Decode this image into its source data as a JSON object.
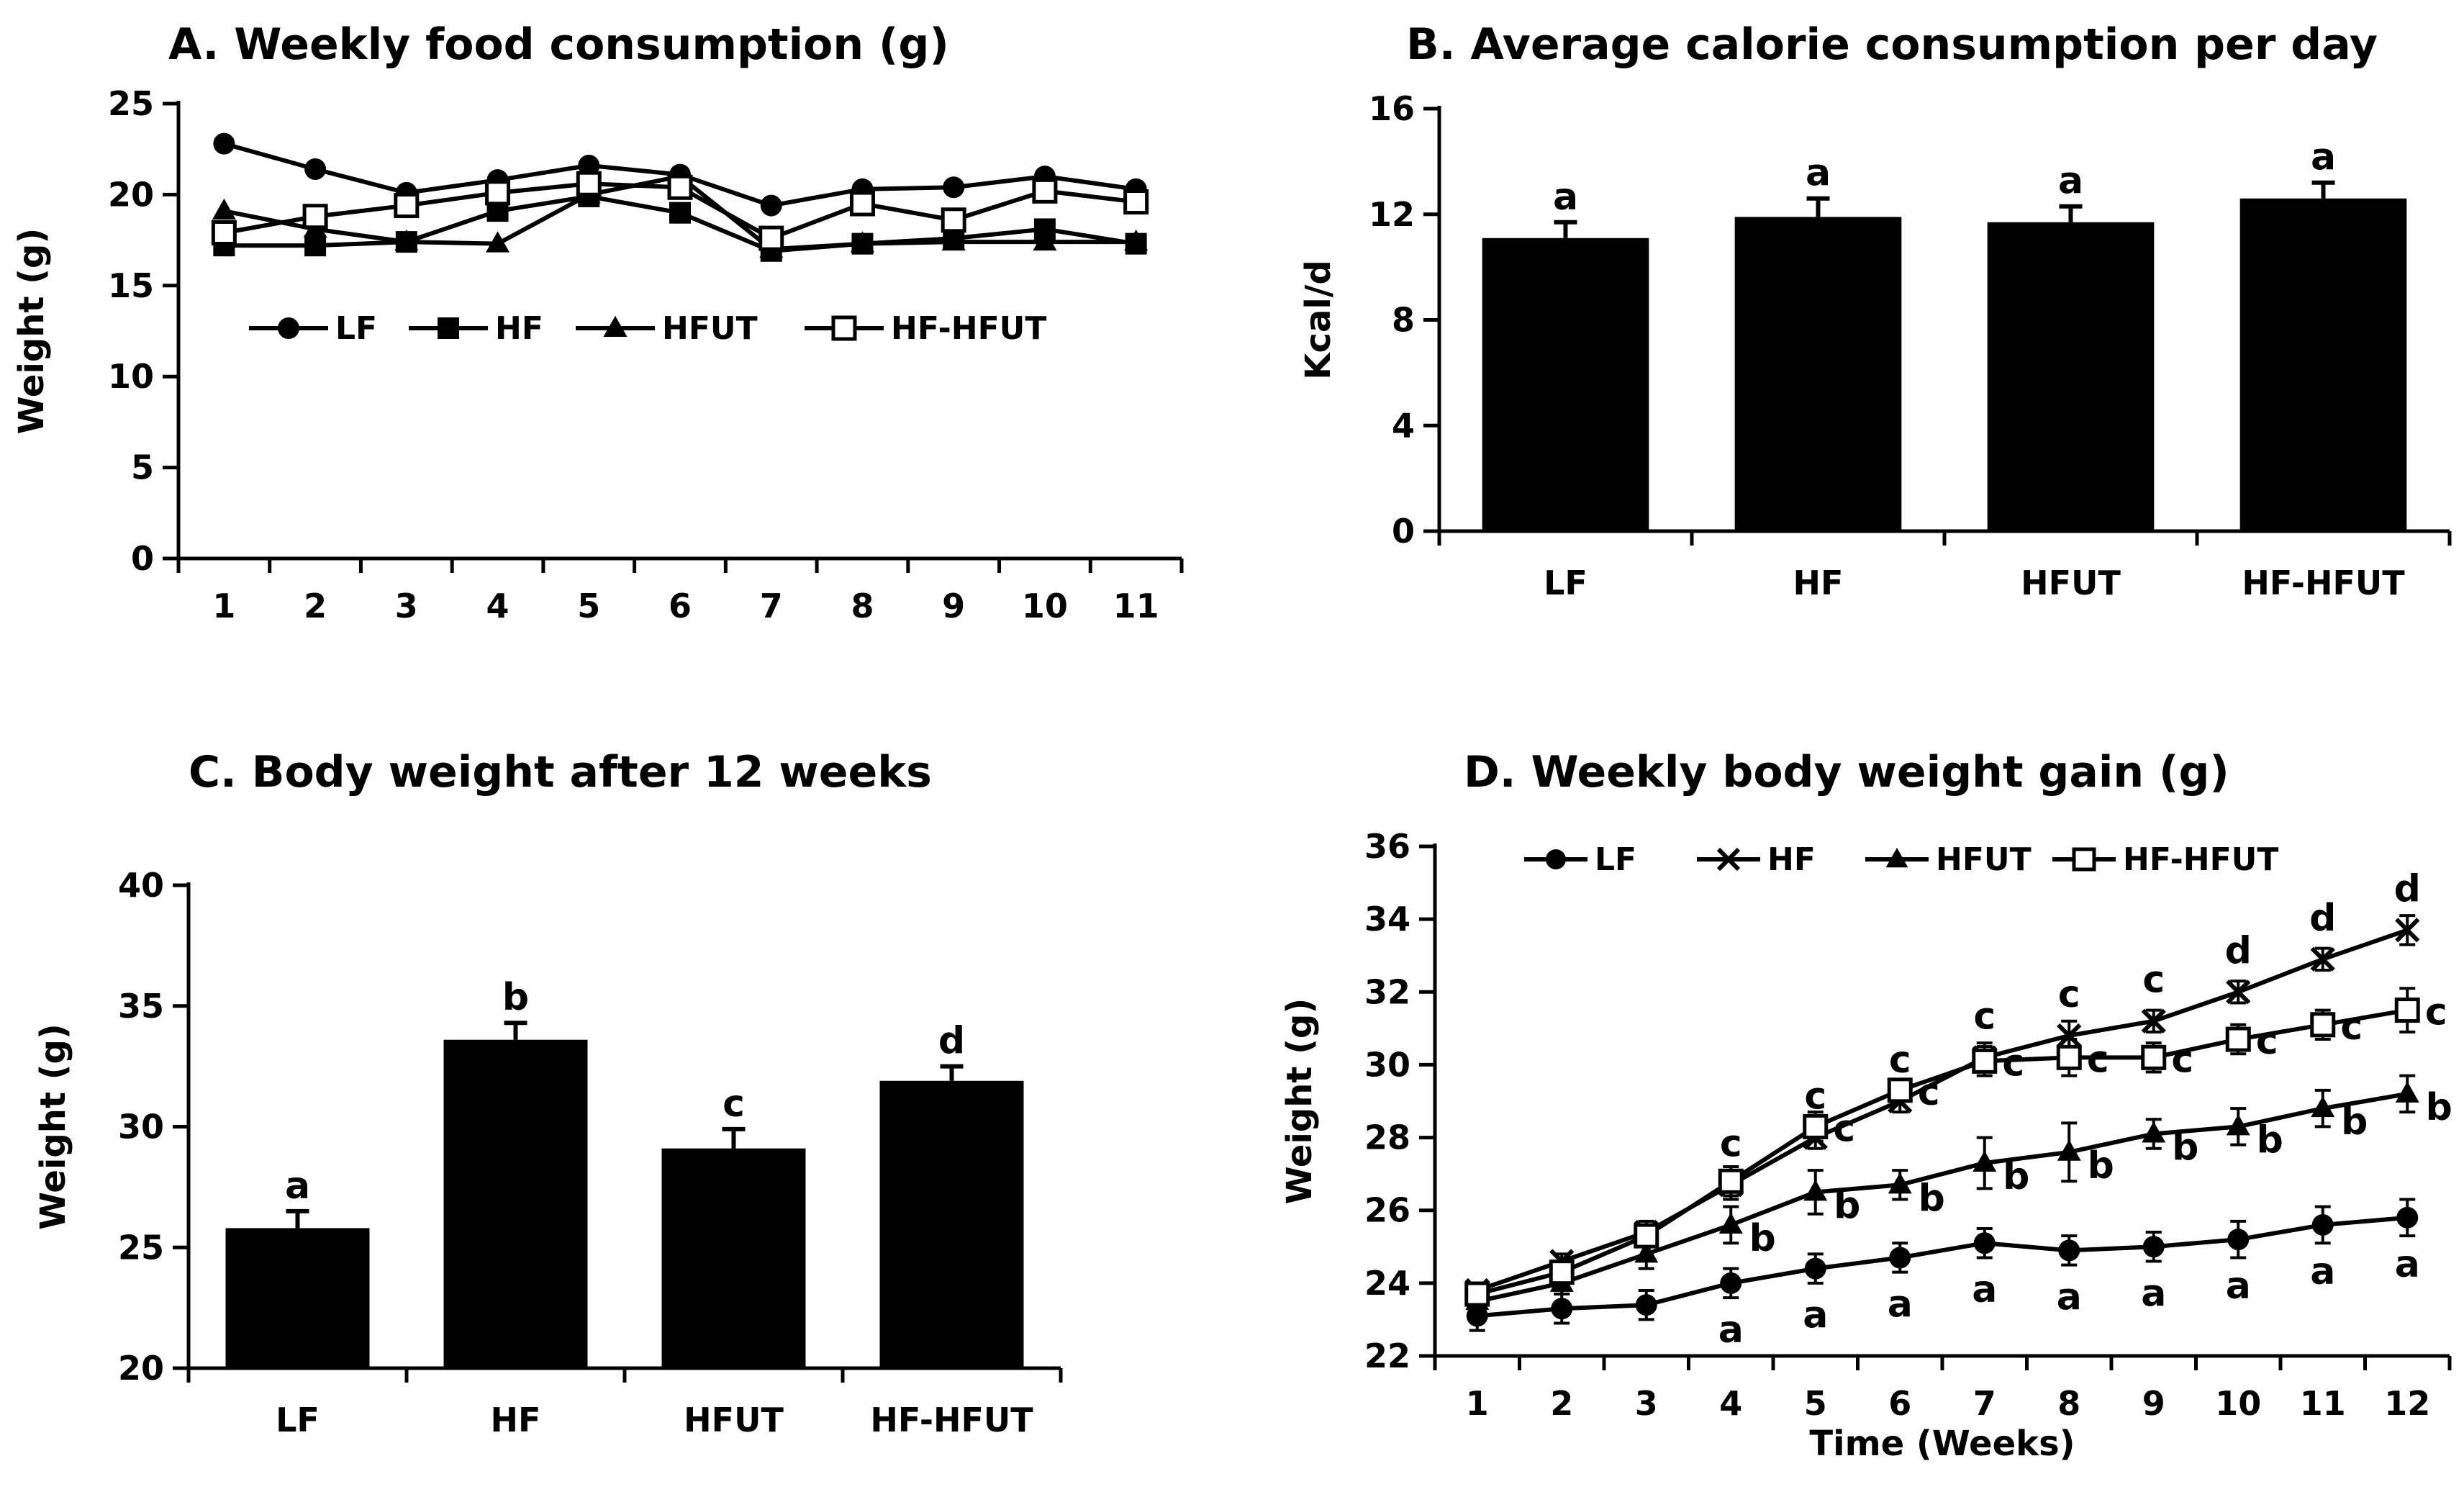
{
  "colors": {
    "ink": "#000000",
    "background": "#ffffff"
  },
  "chart_data": [
    {
      "id": "A",
      "type": "line",
      "title": "A. Weekly food consumption (g)",
      "xlabel": "",
      "ylabel": "Weight (g)",
      "x": [
        1,
        2,
        3,
        4,
        5,
        6,
        7,
        8,
        9,
        10,
        11
      ],
      "xtick_labels": [
        "1",
        "2",
        "3",
        "4",
        "5",
        "6",
        "7",
        "8",
        "9",
        "10",
        "11"
      ],
      "ylim": [
        0,
        25
      ],
      "yticks": [
        0,
        5,
        10,
        15,
        20,
        25
      ],
      "ytick_labels": [
        "0",
        "5",
        "10",
        "15",
        "20",
        "25"
      ],
      "legend_position": "middle-left",
      "grid": false,
      "series": [
        {
          "name": "LF",
          "marker": "circle-filled",
          "values": [
            22.8,
            21.4,
            20.1,
            20.8,
            21.6,
            21.1,
            19.4,
            20.3,
            20.4,
            21.0,
            20.3
          ]
        },
        {
          "name": "HF",
          "marker": "square-filled",
          "values": [
            17.2,
            17.2,
            17.4,
            19.1,
            19.9,
            19.0,
            16.9,
            17.3,
            17.6,
            18.1,
            17.3
          ]
        },
        {
          "name": "HFUT",
          "marker": "triangle-filled",
          "values": [
            19.1,
            18.1,
            17.4,
            17.3,
            20.0,
            21.0,
            17.0,
            17.3,
            17.4,
            17.4,
            17.4
          ]
        },
        {
          "name": "HF-HFUT",
          "marker": "square-open",
          "values": [
            17.9,
            18.8,
            19.4,
            20.1,
            20.6,
            20.4,
            17.6,
            19.5,
            18.6,
            20.2,
            19.6
          ]
        }
      ]
    },
    {
      "id": "B",
      "type": "bar",
      "title": "B. Average calorie consumption per day",
      "xlabel": "",
      "ylabel": "Kcal/d",
      "categories": [
        "LF",
        "HF",
        "HFUT",
        "HF-HFUT"
      ],
      "values": [
        11.1,
        11.9,
        11.7,
        12.6
      ],
      "errors": [
        0.6,
        0.7,
        0.6,
        0.6
      ],
      "labels": [
        "a",
        "a",
        "a",
        "a"
      ],
      "ylim": [
        0,
        16
      ],
      "yticks": [
        0,
        4,
        8,
        12,
        16
      ],
      "ytick_labels": [
        "0",
        "4",
        "8",
        "12",
        "16"
      ],
      "grid": false
    },
    {
      "id": "C",
      "type": "bar",
      "title": "C. Body weight after 12 weeks",
      "xlabel": "",
      "ylabel": "Weight (g)",
      "categories": [
        "LF",
        "HF",
        "HFUT",
        "HF-HFUT"
      ],
      "values": [
        25.8,
        33.6,
        29.1,
        31.9
      ],
      "errors": [
        0.7,
        0.7,
        0.8,
        0.6
      ],
      "labels": [
        "a",
        "b",
        "c",
        "d"
      ],
      "ylim": [
        20,
        40
      ],
      "yticks": [
        20,
        25,
        30,
        35,
        40
      ],
      "ytick_labels": [
        "20",
        "25",
        "30",
        "35",
        "40"
      ],
      "grid": false
    },
    {
      "id": "D",
      "type": "line",
      "title": "D. Weekly body weight gain (g)",
      "xlabel": "Time (Weeks)",
      "ylabel": "Weight (g)",
      "x": [
        1,
        2,
        3,
        4,
        5,
        6,
        7,
        8,
        9,
        10,
        11,
        12
      ],
      "xtick_labels": [
        "1",
        "2",
        "3",
        "4",
        "5",
        "6",
        "7",
        "8",
        "9",
        "10",
        "11",
        "12"
      ],
      "ylim": [
        22,
        36
      ],
      "yticks": [
        22,
        24,
        26,
        28,
        30,
        32,
        34,
        36
      ],
      "ytick_labels": [
        "22",
        "24",
        "26",
        "28",
        "30",
        "32",
        "34",
        "36"
      ],
      "legend_position": "top",
      "grid": false,
      "series": [
        {
          "name": "LF",
          "marker": "circle-filled",
          "values": [
            23.1,
            23.3,
            23.4,
            24.0,
            24.4,
            24.7,
            25.1,
            24.9,
            25.0,
            25.2,
            25.6,
            25.8
          ],
          "errors": [
            0.4,
            0.4,
            0.4,
            0.4,
            0.4,
            0.4,
            0.4,
            0.4,
            0.4,
            0.5,
            0.5,
            0.5
          ],
          "labels": [
            "",
            "",
            "",
            "a",
            "a",
            "a",
            "a",
            "a",
            "a",
            "a",
            "a",
            "a"
          ]
        },
        {
          "name": "HF",
          "marker": "x",
          "values": [
            23.8,
            24.6,
            25.4,
            26.7,
            28.0,
            29.0,
            30.2,
            30.8,
            31.2,
            32.0,
            32.9,
            33.7
          ],
          "errors": [
            0.2,
            0.2,
            0.3,
            0.4,
            0.3,
            0.3,
            0.4,
            0.4,
            0.3,
            0.3,
            0.3,
            0.4
          ],
          "labels": [
            "",
            "",
            "",
            "c",
            "c",
            "c",
            "c",
            "c",
            "c",
            "d",
            "d",
            "d"
          ]
        },
        {
          "name": "HFUT",
          "marker": "triangle-filled",
          "values": [
            23.5,
            24.0,
            24.8,
            25.6,
            26.5,
            26.7,
            27.3,
            27.6,
            28.1,
            28.3,
            28.8,
            29.2
          ],
          "errors": [
            0.3,
            0.3,
            0.4,
            0.5,
            0.6,
            0.4,
            0.7,
            0.8,
            0.4,
            0.5,
            0.5,
            0.5
          ],
          "labels": [
            "",
            "",
            "",
            "b",
            "b",
            "b",
            "b",
            "b",
            "b",
            "b",
            "b",
            "b"
          ]
        },
        {
          "name": "HF-HFUT",
          "marker": "square-open",
          "values": [
            23.7,
            24.3,
            25.3,
            26.8,
            28.3,
            29.3,
            30.1,
            30.2,
            30.2,
            30.7,
            31.1,
            31.5
          ],
          "errors": [
            0.2,
            0.2,
            0.3,
            0.4,
            0.4,
            0.3,
            0.4,
            0.5,
            0.4,
            0.4,
            0.4,
            0.6
          ],
          "labels": [
            "",
            "",
            "",
            "",
            "c",
            "c",
            "c",
            "c",
            "c",
            "c",
            "c",
            "c"
          ]
        }
      ]
    }
  ]
}
